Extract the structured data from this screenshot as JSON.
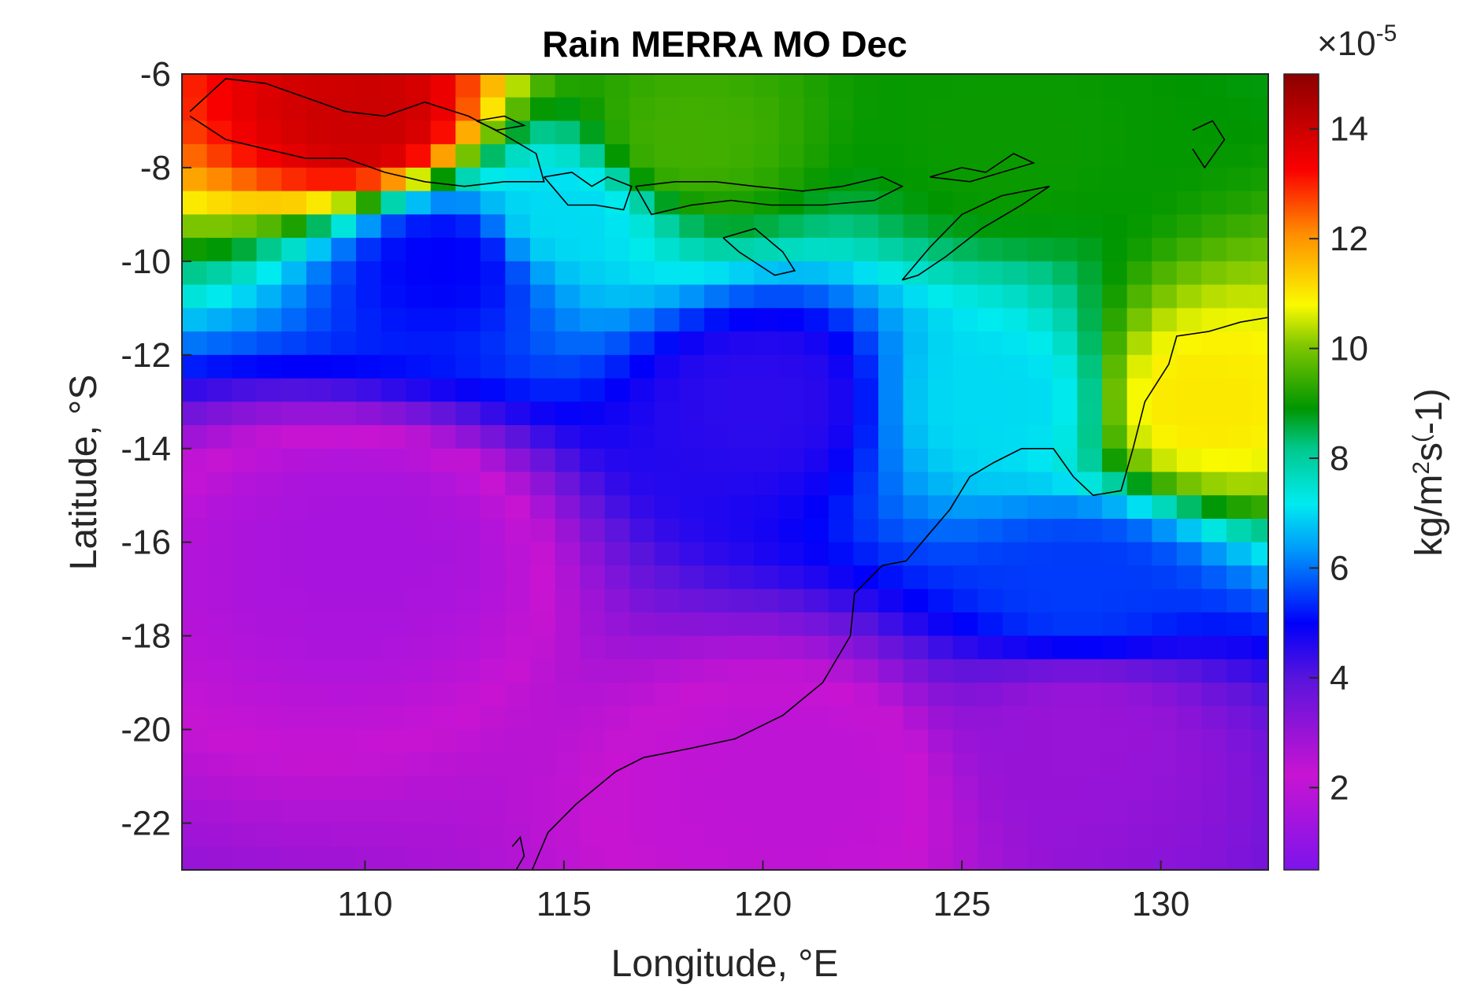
{
  "chart_data": {
    "type": "heatmap",
    "title": "Rain MERRA MO Dec",
    "xlabel": "Longitude, °E",
    "ylabel": "Latitude, °S",
    "xlim": [
      105.4,
      132.7
    ],
    "ylim": [
      -23,
      -6
    ],
    "x_ticks": [
      110,
      115,
      120,
      125,
      130
    ],
    "x_tick_labels": [
      "110",
      "115",
      "120",
      "125",
      "130"
    ],
    "y_ticks": [
      -6,
      -8,
      -10,
      -12,
      -14,
      -16,
      -18,
      -20,
      -22
    ],
    "y_tick_labels": [
      "-6",
      "-8",
      "-10",
      "-12",
      "-14",
      "-16",
      "-18",
      "-20",
      "-22"
    ],
    "colorbar": {
      "label": "kg/m^2s^(-1)",
      "multiplier": "×10^-5",
      "range": [
        0.5,
        15
      ],
      "ticks": [
        2,
        4,
        6,
        8,
        10,
        12,
        14
      ],
      "tick_labels": [
        "2",
        "4",
        "6",
        "8",
        "10",
        "12",
        "14"
      ],
      "colormap": "jet-like purple to dark red"
    },
    "grid": {
      "dlon": 0.625,
      "dlat": 0.5
    },
    "field_description_points": [
      {
        "lon": 110,
        "lat": -7,
        "value": 14
      },
      {
        "lon": 118,
        "lat": -7.5,
        "value": 9.5
      },
      {
        "lon": 126,
        "lat": -7.5,
        "value": 9
      },
      {
        "lon": 115,
        "lat": -9,
        "value": 7
      },
      {
        "lon": 112,
        "lat": -10,
        "value": 5
      },
      {
        "lon": 110,
        "lat": -16,
        "value": 1.5
      },
      {
        "lon": 120,
        "lat": -13,
        "value": 4.5
      },
      {
        "lon": 126,
        "lat": -13,
        "value": 7
      },
      {
        "lon": 131,
        "lat": -13,
        "value": 11
      },
      {
        "lon": 128,
        "lat": -17,
        "value": 5.5
      },
      {
        "lon": 128,
        "lat": -20,
        "value": 3
      },
      {
        "lon": 121,
        "lat": -21,
        "value": 2
      }
    ],
    "overlay": "black coastline outlines of Java, Lesser Sunda Islands, Timor and NW Australia"
  }
}
